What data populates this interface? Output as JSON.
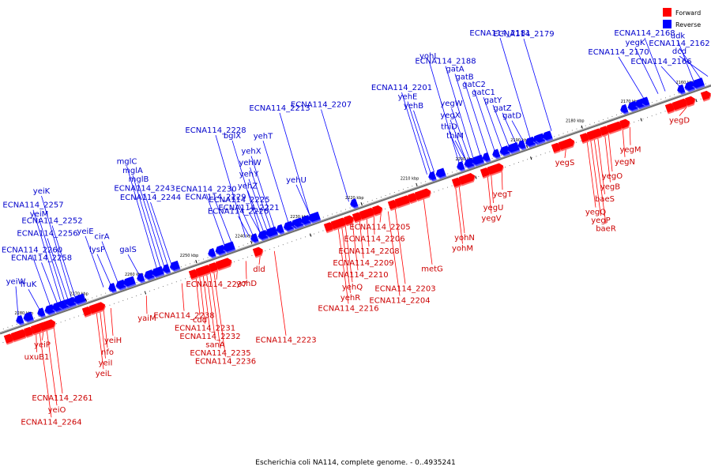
{
  "caption": "Escherichia coli NA114, complete genome. - 0..4935241",
  "legend": {
    "forward": {
      "label": "Forward",
      "color": "#ff0000"
    },
    "reverse": {
      "label": "Reverse",
      "color": "#0000ff"
    }
  },
  "colors": {
    "forward_light": "#ff6a6a",
    "forward_text": "#cc0000",
    "reverse_light": "#5a5aff",
    "reverse_text": "#0000cc",
    "backbone": "#6e6e6e"
  },
  "ticks": [
    "2280 kbp",
    "2270 kbp",
    "2260 kbp",
    "2250 kbp",
    "2240 kbp",
    "2230 kbp",
    "2220 kbp",
    "2210 kbp",
    "2200 kbp",
    "2190 kbp",
    "2180 kbp",
    "2170 kbp",
    "2160 kbp"
  ],
  "reverse_genes": [
    {
      "label": "dcd",
      "t": 1.0
    },
    {
      "label": "ECNA114_2162",
      "t": 0.99
    },
    {
      "label": "udk",
      "t": 0.98
    },
    {
      "label": "ECNA114_2166",
      "t": 0.96
    },
    {
      "label": "ECNA114_2168",
      "t": 0.94
    },
    {
      "label": "yegK",
      "t": 0.93
    },
    {
      "label": "ECNA114_2170",
      "t": 0.91
    },
    {
      "label": "ECNA114_2179",
      "t": 0.78
    },
    {
      "label": "ECNA114_2181",
      "t": 0.75
    },
    {
      "label": "gatD",
      "t": 0.74
    },
    {
      "label": "gatZ",
      "t": 0.73
    },
    {
      "label": "gatY",
      "t": 0.72
    },
    {
      "label": "gatC1",
      "t": 0.71
    },
    {
      "label": "gatC2",
      "t": 0.7
    },
    {
      "label": "gatB",
      "t": 0.69
    },
    {
      "label": "gatA",
      "t": 0.68
    },
    {
      "label": "ECNA114_2188",
      "t": 0.67
    },
    {
      "label": "yohL",
      "t": 0.65
    },
    {
      "label": "thiM",
      "t": 0.66
    },
    {
      "label": "thiD",
      "t": 0.655
    },
    {
      "label": "yegX",
      "t": 0.66
    },
    {
      "label": "yegW",
      "t": 0.665
    },
    {
      "label": "yehB",
      "t": 0.615
    },
    {
      "label": "yehE",
      "t": 0.61
    },
    {
      "label": "ECNA114_2201",
      "t": 0.605
    },
    {
      "label": "ECNA114_2207",
      "t": 0.495
    },
    {
      "label": "ECNA114_2213",
      "t": 0.44
    },
    {
      "label": "ECNA114_2221",
      "t": 0.37
    },
    {
      "label": "yehU",
      "t": 0.44
    },
    {
      "label": "yehZ",
      "t": 0.375
    },
    {
      "label": "yehY",
      "t": 0.38
    },
    {
      "label": "yehW",
      "t": 0.385
    },
    {
      "label": "yehX",
      "t": 0.39
    },
    {
      "label": "yehT",
      "t": 0.41
    },
    {
      "label": "bglX",
      "t": 0.37
    },
    {
      "label": "ECNA114_2228",
      "t": 0.35
    },
    {
      "label": "ECNA114_2226",
      "t": 0.355
    },
    {
      "label": "ECNA114_2225",
      "t": 0.36
    },
    {
      "label": "ECNA114_2229",
      "t": 0.33
    },
    {
      "label": "ECNA114_2230",
      "t": 0.32
    },
    {
      "label": "ECNA114_2244",
      "t": 0.245
    },
    {
      "label": "ECNA114_2243",
      "t": 0.24
    },
    {
      "label": "mglB",
      "t": 0.235
    },
    {
      "label": "mglA",
      "t": 0.23
    },
    {
      "label": "mglC",
      "t": 0.225
    },
    {
      "label": "galS",
      "t": 0.2
    },
    {
      "label": "lysP",
      "t": 0.16
    },
    {
      "label": "cirA",
      "t": 0.17
    },
    {
      "label": "yeiE",
      "t": 0.15
    },
    {
      "label": "ECNA114_2256",
      "t": 0.1
    },
    {
      "label": "ECNA114_2252",
      "t": 0.11
    },
    {
      "label": "yeiM",
      "t": 0.095
    },
    {
      "label": "ECNA114_2257",
      "t": 0.09
    },
    {
      "label": "yeiK",
      "t": 0.105
    },
    {
      "label": "fruK",
      "t": 0.06
    },
    {
      "label": "yeiW",
      "t": 0.03
    },
    {
      "label": "ECNA114_2258",
      "t": 0.085
    },
    {
      "label": "ECNA114_2260",
      "t": 0.075
    }
  ],
  "forward_genes": [
    {
      "label": "yegD",
      "t": 0.96
    },
    {
      "label": "yegM",
      "t": 0.88
    },
    {
      "label": "yegN",
      "t": 0.87
    },
    {
      "label": "yegO",
      "t": 0.85
    },
    {
      "label": "yegB",
      "t": 0.845
    },
    {
      "label": "baeS",
      "t": 0.835
    },
    {
      "label": "yegQ",
      "t": 0.82
    },
    {
      "label": "yegP",
      "t": 0.825
    },
    {
      "label": "baeR",
      "t": 0.83
    },
    {
      "label": "yegS",
      "t": 0.79
    },
    {
      "label": "yegT",
      "t": 0.7
    },
    {
      "label": "yegU",
      "t": 0.685
    },
    {
      "label": "yegV",
      "t": 0.68
    },
    {
      "label": "yohN",
      "t": 0.64
    },
    {
      "label": "yohM",
      "t": 0.635
    },
    {
      "label": "metG",
      "t": 0.59
    },
    {
      "label": "ECNA114_2203",
      "t": 0.55
    },
    {
      "label": "ECNA114_2204",
      "t": 0.54
    },
    {
      "label": "ECNA114_2205",
      "t": 0.53
    },
    {
      "label": "ECNA114_2206",
      "t": 0.52
    },
    {
      "label": "ECNA114_2208",
      "t": 0.51
    },
    {
      "label": "ECNA114_2209",
      "t": 0.5
    },
    {
      "label": "ECNA114_2210",
      "t": 0.49
    },
    {
      "label": "yehQ",
      "t": 0.48
    },
    {
      "label": "yehR",
      "t": 0.475
    },
    {
      "label": "ECNA114_2216",
      "t": 0.47
    },
    {
      "label": "ECNA114_2223",
      "t": 0.38
    },
    {
      "label": "dld",
      "t": 0.36
    },
    {
      "label": "yohD",
      "t": 0.34
    },
    {
      "label": "ECNA114_2238",
      "t": 0.25
    },
    {
      "label": "cdd",
      "t": 0.27
    },
    {
      "label": "ECNA114_2231",
      "t": 0.275
    },
    {
      "label": "ECNA114_2232",
      "t": 0.28
    },
    {
      "label": "sanA",
      "t": 0.285
    },
    {
      "label": "ECNA114_2235",
      "t": 0.29
    },
    {
      "label": "ECNA114_2236",
      "t": 0.295
    },
    {
      "label": "ECNA114_2237",
      "t": 0.3
    },
    {
      "label": "yaiM",
      "t": 0.2
    },
    {
      "label": "yeiH",
      "t": 0.15
    },
    {
      "label": "nfo",
      "t": 0.14
    },
    {
      "label": "yeiI",
      "t": 0.135
    },
    {
      "label": "yeiL",
      "t": 0.13
    },
    {
      "label": "ECNA114_2261",
      "t": 0.07
    },
    {
      "label": "yeiO",
      "t": 0.06
    },
    {
      "label": "ECNA114_2264",
      "t": 0.05
    },
    {
      "label": "yeiP",
      "t": 0.055
    },
    {
      "label": "uxuB1",
      "t": 0.045
    }
  ]
}
